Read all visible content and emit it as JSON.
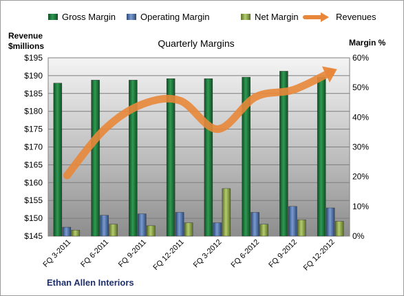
{
  "chart_data": {
    "type": "bar",
    "title": "Quarterly Margins",
    "footer": "Ethan Allen Interiors",
    "left_axis_label": [
      "Revenue",
      "$millions"
    ],
    "right_axis_label": "Margin %",
    "categories": [
      "FQ 3-2011",
      "FQ 6-2011",
      "FQ 9-2011",
      "FQ 12-2011",
      "FQ 3-2012",
      "FQ 6-2012",
      "FQ 9-2012",
      "FQ 12-2012"
    ],
    "left_axis": {
      "min": 145,
      "max": 195,
      "step": 5,
      "tick_labels": [
        "$145",
        "$150",
        "$155",
        "$160",
        "$165",
        "$170",
        "$175",
        "$180",
        "$185",
        "$190",
        "$195"
      ]
    },
    "right_axis": {
      "min": 0,
      "max": 60,
      "step": 10,
      "tick_labels": [
        "0%",
        "10%",
        "20%",
        "30%",
        "40%",
        "50%",
        "60%"
      ]
    },
    "series": [
      {
        "name": "Gross Margin",
        "kind": "bar",
        "axis": "right",
        "color": "#1e7a3a",
        "values": [
          51.5,
          52.5,
          52.5,
          53,
          53,
          53.5,
          55.5,
          53.5
        ]
      },
      {
        "name": "Operating Margin",
        "kind": "bar",
        "axis": "right",
        "color": "#4a6fa5",
        "values": [
          3,
          7,
          7.5,
          8,
          4.5,
          8,
          10,
          9.5
        ]
      },
      {
        "name": "Net Margin",
        "kind": "bar",
        "axis": "right",
        "color": "#8ea64a",
        "values": [
          2,
          4,
          3.5,
          4.5,
          16,
          4,
          5.5,
          5
        ]
      },
      {
        "name": "Revenues",
        "kind": "line",
        "axis": "left",
        "color": "#e8873a",
        "values": [
          162,
          175,
          182,
          183,
          175,
          184,
          186,
          191
        ]
      }
    ],
    "legend_position": "top",
    "grid": true
  }
}
